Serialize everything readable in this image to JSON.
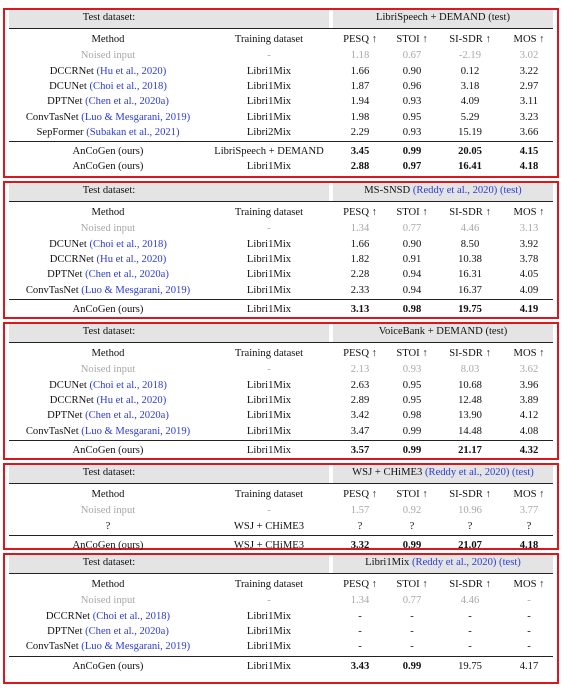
{
  "headers": {
    "test_dataset": "Test dataset:",
    "method": "Method",
    "training_dataset": "Training dataset",
    "pesq": "PESQ ↑",
    "stoi": "STOI ↑",
    "sisdr": "SI-SDR ↑",
    "mos": "MOS ↑"
  },
  "tables": [
    {
      "title": "LibriSpeech + DEMAND (test)",
      "title_cite": "",
      "rows": [
        {
          "method": "Noised input",
          "cite": "",
          "train": "-",
          "pesq": "1.18",
          "stoi": "0.67",
          "sisdr": "-2.19",
          "mos": "3.02",
          "style": "gray"
        },
        {
          "method": "DCCRNet",
          "cite": "(Hu et al., 2020)",
          "train": "Libri1Mix",
          "pesq": "1.66",
          "stoi": "0.90",
          "sisdr": "0.12",
          "mos": "3.22"
        },
        {
          "method": "DCUNet",
          "cite": "(Choi et al., 2018)",
          "train": "Libri1Mix",
          "pesq": "1.87",
          "stoi": "0.96",
          "sisdr": "3.18",
          "mos": "2.97"
        },
        {
          "method": "DPTNet",
          "cite": "(Chen et al., 2020a)",
          "train": "Libri1Mix",
          "pesq": "1.94",
          "stoi": "0.93",
          "sisdr": "4.09",
          "mos": "3.11"
        },
        {
          "method": "ConvTasNet",
          "cite": "(Luo & Mesgarani, 2019)",
          "train": "Libri1Mix",
          "pesq": "1.98",
          "stoi": "0.95",
          "sisdr": "5.29",
          "mos": "3.23"
        },
        {
          "method": "SepFormer",
          "cite": "(Subakan et al., 2021)",
          "train": "Libri2Mix",
          "pesq": "2.29",
          "stoi": "0.93",
          "sisdr": "15.19",
          "mos": "3.66"
        },
        {
          "method": "AnCoGen (ours)",
          "cite": "",
          "train": "LibriSpeech + DEMAND",
          "pesq": "3.45",
          "stoi": "0.99",
          "sisdr": "20.05",
          "mos": "4.15",
          "style": "bold-metrics",
          "sep_before": true
        },
        {
          "method": "AnCoGen (ours)",
          "cite": "",
          "train": "Libri1Mix",
          "pesq": "2.88",
          "stoi": "0.97",
          "sisdr": "16.41",
          "mos": "4.18",
          "style": "bold-metrics"
        }
      ]
    },
    {
      "title": "MS-SNSD",
      "title_cite": "(Reddy et al., 2020) (test)",
      "rows": [
        {
          "method": "Noised input",
          "cite": "",
          "train": "-",
          "pesq": "1.34",
          "stoi": "0.77",
          "sisdr": "4.46",
          "mos": "3.13",
          "style": "gray"
        },
        {
          "method": "DCUNet",
          "cite": "(Choi et al., 2018)",
          "train": "Libri1Mix",
          "pesq": "1.66",
          "stoi": "0.90",
          "sisdr": "8.50",
          "mos": "3.92"
        },
        {
          "method": "DCCRNet",
          "cite": "(Hu et al., 2020)",
          "train": "Libri1Mix",
          "pesq": "1.82",
          "stoi": "0.91",
          "sisdr": "10.38",
          "mos": "3.78"
        },
        {
          "method": "DPTNet",
          "cite": "(Chen et al., 2020a)",
          "train": "Libri1Mix",
          "pesq": "2.28",
          "stoi": "0.94",
          "sisdr": "16.31",
          "mos": "4.05"
        },
        {
          "method": "ConvTasNet",
          "cite": "(Luo & Mesgarani, 2019)",
          "train": "Libri1Mix",
          "pesq": "2.33",
          "stoi": "0.94",
          "sisdr": "16.37",
          "mos": "4.09"
        },
        {
          "method": "AnCoGen (ours)",
          "cite": "",
          "train": "Libri1Mix",
          "pesq": "3.13",
          "stoi": "0.98",
          "sisdr": "19.75",
          "mos": "4.19",
          "style": "bold-metrics",
          "sep_before": true
        }
      ]
    },
    {
      "title": "VoiceBank + DEMAND (test)",
      "title_cite": "",
      "rows": [
        {
          "method": "Noised input",
          "cite": "",
          "train": "-",
          "pesq": "2.13",
          "stoi": "0.93",
          "sisdr": "8.03",
          "mos": "3.62",
          "style": "gray"
        },
        {
          "method": "DCUNet",
          "cite": "(Choi et al., 2018)",
          "train": "Libri1Mix",
          "pesq": "2.63",
          "stoi": "0.95",
          "sisdr": "10.68",
          "mos": "3.96"
        },
        {
          "method": "DCCRNet",
          "cite": "(Hu et al., 2020)",
          "train": "Libri1Mix",
          "pesq": "2.89",
          "stoi": "0.95",
          "sisdr": "12.48",
          "mos": "3.89"
        },
        {
          "method": "DPTNet",
          "cite": "(Chen et al., 2020a)",
          "train": "Libri1Mix",
          "pesq": "3.42",
          "stoi": "0.98",
          "sisdr": "13.90",
          "mos": "4.12"
        },
        {
          "method": "ConvTasNet",
          "cite": "(Luo & Mesgarani, 2019)",
          "train": "Libri1Mix",
          "pesq": "3.47",
          "stoi": "0.99",
          "sisdr": "14.48",
          "mos": "4.08"
        },
        {
          "method": "AnCoGen (ours)",
          "cite": "",
          "train": "Libri1Mix",
          "pesq": "3.57",
          "stoi": "0.99",
          "sisdr": "21.17",
          "mos": "4.32",
          "style": "bold-metrics",
          "sep_before": true
        }
      ]
    },
    {
      "title": "WSJ + CHiME3",
      "title_cite": "(Reddy et al., 2020) (test)",
      "rows": [
        {
          "method": "Noised input",
          "cite": "",
          "train": "-",
          "pesq": "1.57",
          "stoi": "0.92",
          "sisdr": "10.96",
          "mos": "3.77",
          "style": "gray"
        },
        {
          "method": "?",
          "cite": "",
          "train": "WSJ + CHiME3",
          "pesq": "?",
          "stoi": "?",
          "sisdr": "?",
          "mos": "?"
        },
        {
          "method": "AnCoGen (ours)",
          "cite": "",
          "train": "WSJ + CHiME3",
          "pesq": "3.32",
          "stoi": "0.99",
          "sisdr": "21.07",
          "mos": "4.18",
          "style": "bold-metrics",
          "sep_before": true
        }
      ]
    },
    {
      "title": "Libri1Mix",
      "title_cite": "(Reddy et al., 2020) (test)",
      "rows": [
        {
          "method": "Noised input",
          "cite": "",
          "train": "-",
          "pesq": "1.34",
          "stoi": "0.77",
          "sisdr": "4.46",
          "mos": "-",
          "style": "gray"
        },
        {
          "method": "DCCRNet",
          "cite": "(Choi et al., 2018)",
          "train": "Libri1Mix",
          "pesq": "-",
          "stoi": "-",
          "sisdr": "-",
          "mos": "-"
        },
        {
          "method": "DPTNet",
          "cite": "(Chen et al., 2020a)",
          "train": "Libri1Mix",
          "pesq": "-",
          "stoi": "-",
          "sisdr": "-",
          "mos": "-"
        },
        {
          "method": "ConvTasNet",
          "cite": "(Luo & Mesgarani, 2019)",
          "train": "Libri1Mix",
          "pesq": "-",
          "stoi": "-",
          "sisdr": "-",
          "mos": "-"
        },
        {
          "method": "AnCoGen (ours)",
          "cite": "",
          "train": "Libri1Mix",
          "pesq": "3.43",
          "stoi": "0.99",
          "sisdr": "19.75",
          "mos": "4.17",
          "style": "bold-first2",
          "sep_before": true
        }
      ]
    }
  ]
}
